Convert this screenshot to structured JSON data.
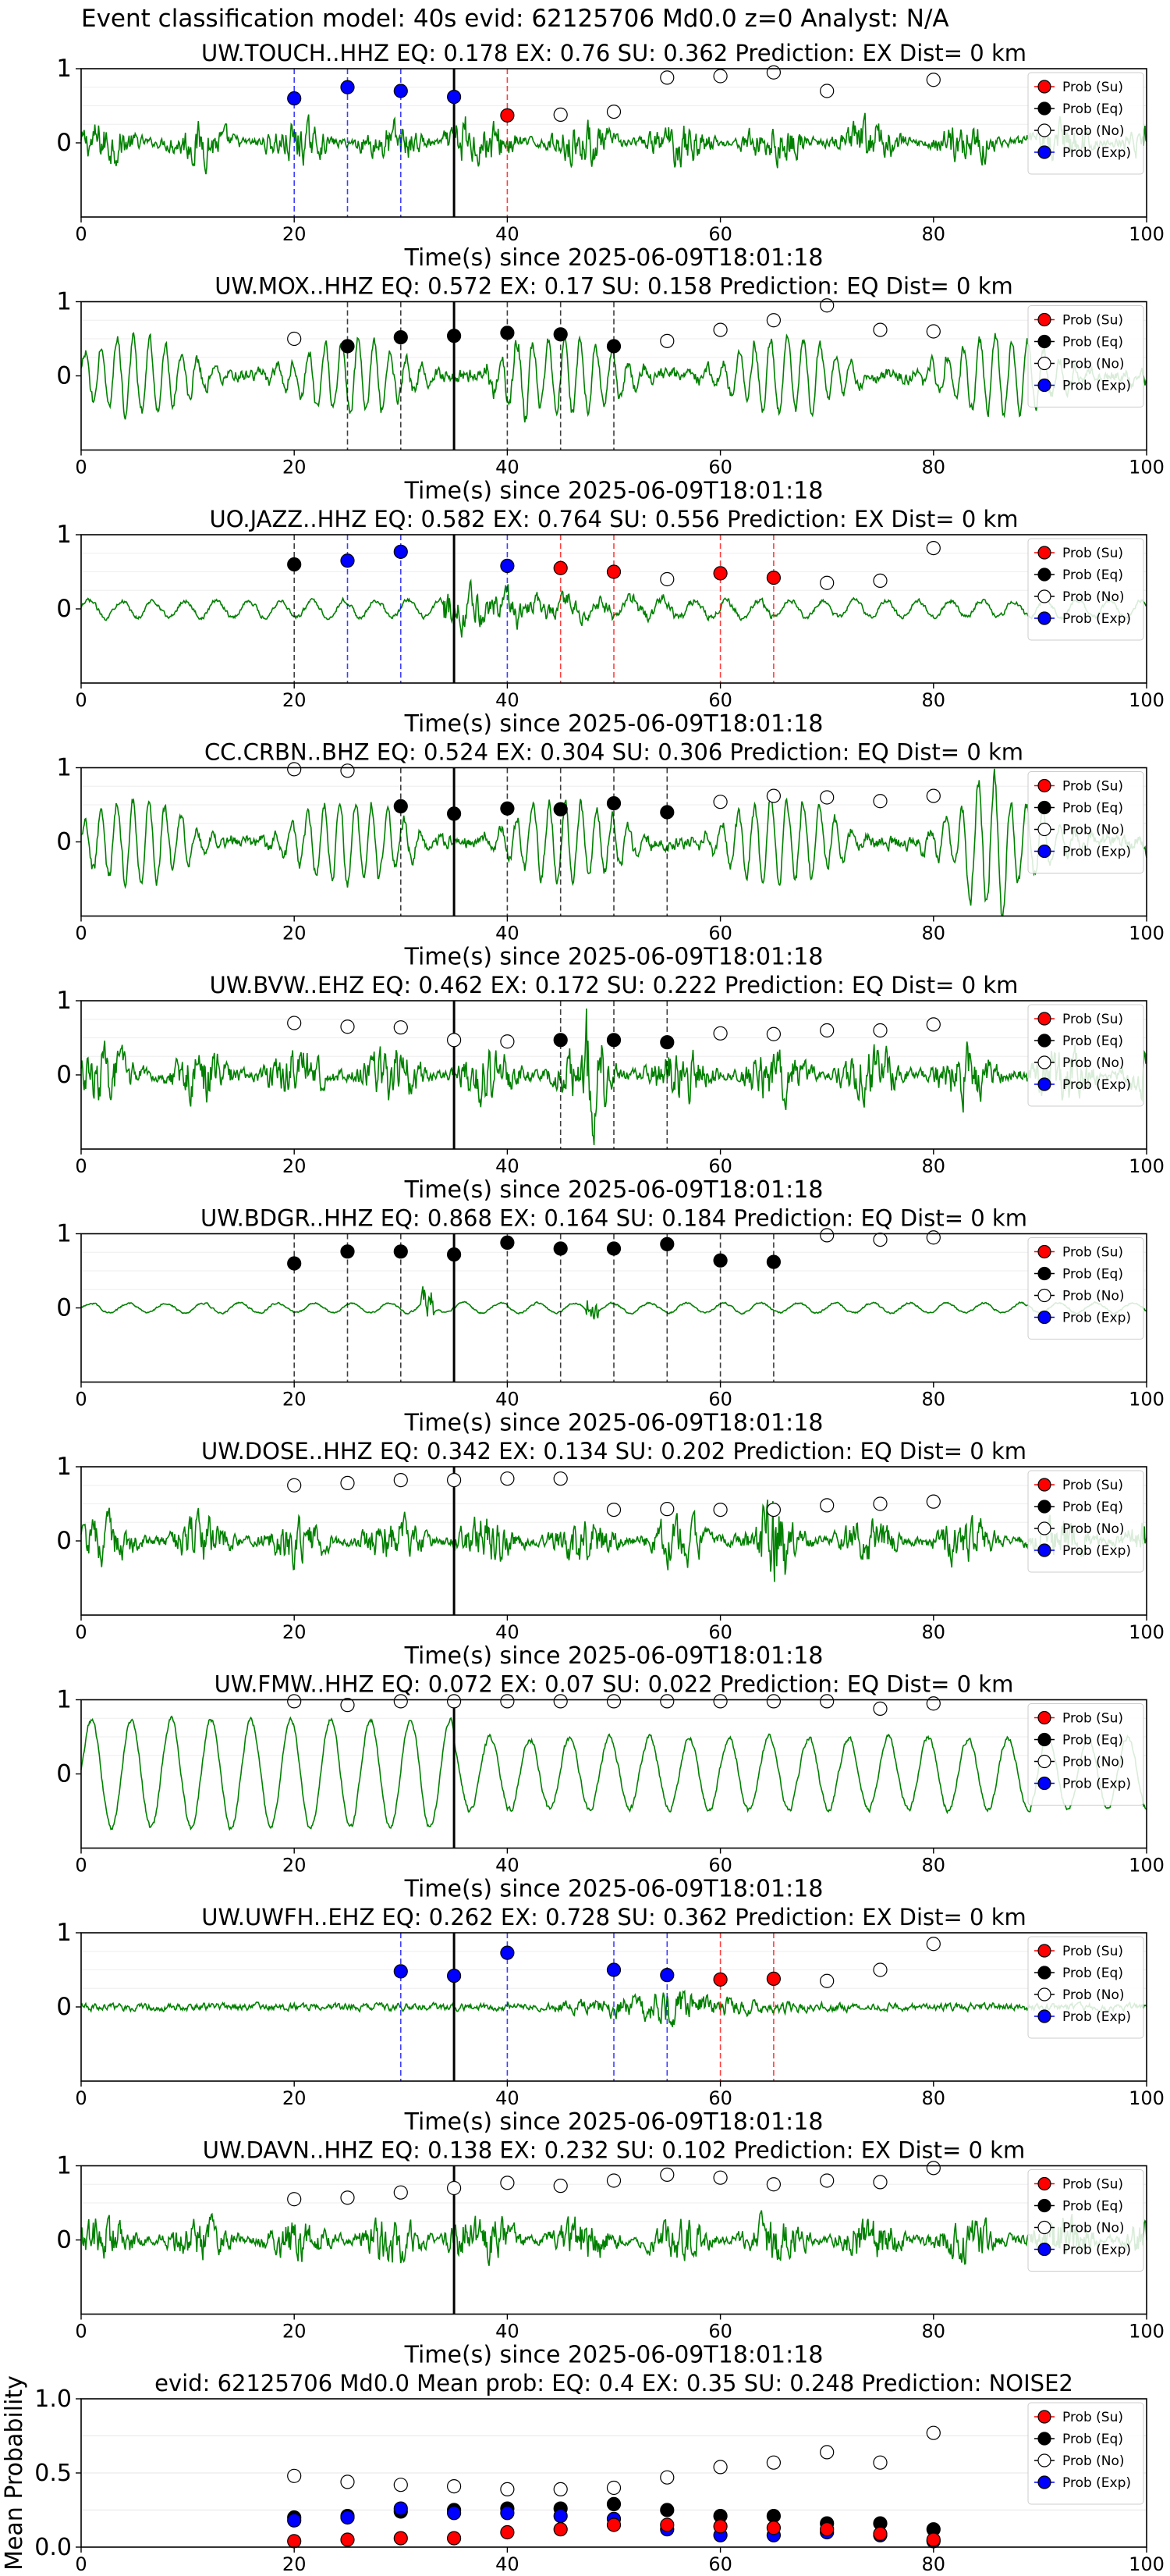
{
  "figure": {
    "suptitle": "Event classification model: 40s evid: 62125706 Md0.0 z=0 Analyst: N/A"
  },
  "colors": {
    "waveform": "#008000",
    "su": "#ff0000",
    "eq": "#000000",
    "no": "#ffffff",
    "exp": "#0000ff",
    "pick": "#000000"
  },
  "legend": {
    "placement": "top-right",
    "entries": [
      "Prob (Su)",
      "Prob (Eq)",
      "Prob (No)",
      "Prob (Exp)"
    ]
  },
  "chart_data": [
    {
      "type": "line",
      "title": "UW.TOUCH..HHZ   EQ: 0.178   EX: 0.76   SU: 0.362   Prediction: EX    Dist= 0 km",
      "xlabel": "Time(s) since 2025-06-09T18:01:18",
      "xlim": [
        0,
        100
      ],
      "ylim": [
        -1,
        1
      ],
      "xticks": [
        0,
        20,
        40,
        60,
        80,
        100
      ],
      "yticks": [
        0,
        1
      ],
      "pick_time": 35,
      "waveform": {
        "color": "green",
        "amp": 0.55,
        "style": "hf",
        "burst_at": 35
      },
      "points": [
        {
          "x": 20,
          "y": 0.6,
          "class": "Exp"
        },
        {
          "x": 25,
          "y": 0.75,
          "class": "Exp"
        },
        {
          "x": 30,
          "y": 0.7,
          "class": "Exp"
        },
        {
          "x": 35,
          "y": 0.62,
          "class": "Exp"
        },
        {
          "x": 40,
          "y": 0.37,
          "class": "Su"
        },
        {
          "x": 45,
          "y": 0.38,
          "class": "No"
        },
        {
          "x": 50,
          "y": 0.42,
          "class": "No"
        },
        {
          "x": 55,
          "y": 0.88,
          "class": "No"
        },
        {
          "x": 60,
          "y": 0.9,
          "class": "No"
        },
        {
          "x": 65,
          "y": 0.95,
          "class": "No"
        },
        {
          "x": 70,
          "y": 0.7,
          "class": "No"
        },
        {
          "x": 80,
          "y": 0.85,
          "class": "No"
        }
      ]
    },
    {
      "type": "line",
      "title": "UW.MOX..HHZ   EQ: 0.572   EX: 0.17   SU: 0.158   Prediction: EQ    Dist= 0 km",
      "xlabel": "Time(s) since 2025-06-09T18:01:18",
      "xlim": [
        0,
        100
      ],
      "ylim": [
        -1,
        1
      ],
      "xticks": [
        0,
        20,
        40,
        60,
        80,
        100
      ],
      "yticks": [
        0,
        1
      ],
      "pick_time": 35,
      "waveform": {
        "color": "green",
        "amp": 0.6,
        "style": "mid",
        "burst_at": 40
      },
      "points": [
        {
          "x": 20,
          "y": 0.5,
          "class": "No"
        },
        {
          "x": 25,
          "y": 0.4,
          "class": "Eq"
        },
        {
          "x": 30,
          "y": 0.52,
          "class": "Eq"
        },
        {
          "x": 35,
          "y": 0.54,
          "class": "Eq"
        },
        {
          "x": 40,
          "y": 0.58,
          "class": "Eq"
        },
        {
          "x": 45,
          "y": 0.56,
          "class": "Eq"
        },
        {
          "x": 50,
          "y": 0.4,
          "class": "Eq"
        },
        {
          "x": 55,
          "y": 0.47,
          "class": "No"
        },
        {
          "x": 60,
          "y": 0.62,
          "class": "No"
        },
        {
          "x": 65,
          "y": 0.75,
          "class": "No"
        },
        {
          "x": 70,
          "y": 0.95,
          "class": "No"
        },
        {
          "x": 75,
          "y": 0.62,
          "class": "No"
        },
        {
          "x": 80,
          "y": 0.6,
          "class": "No"
        }
      ]
    },
    {
      "type": "line",
      "title": "UO.JAZZ..HHZ   EQ: 0.582   EX: 0.764   SU: 0.556   Prediction: EX    Dist= 0 km",
      "xlabel": "Time(s) since 2025-06-09T18:01:18",
      "xlim": [
        0,
        100
      ],
      "ylim": [
        -1,
        1
      ],
      "xticks": [
        0,
        20,
        40,
        60,
        80,
        100
      ],
      "yticks": [
        0,
        1
      ],
      "pick_time": 35,
      "waveform": {
        "color": "green",
        "amp": 0.3,
        "style": "low",
        "burst_at": 40
      },
      "points": [
        {
          "x": 20,
          "y": 0.6,
          "class": "Eq"
        },
        {
          "x": 25,
          "y": 0.65,
          "class": "Exp"
        },
        {
          "x": 30,
          "y": 0.77,
          "class": "Exp"
        },
        {
          "x": 40,
          "y": 0.58,
          "class": "Exp"
        },
        {
          "x": 45,
          "y": 0.55,
          "class": "Su"
        },
        {
          "x": 50,
          "y": 0.5,
          "class": "Su"
        },
        {
          "x": 55,
          "y": 0.4,
          "class": "No"
        },
        {
          "x": 60,
          "y": 0.48,
          "class": "Su"
        },
        {
          "x": 65,
          "y": 0.42,
          "class": "Su"
        },
        {
          "x": 70,
          "y": 0.35,
          "class": "No"
        },
        {
          "x": 75,
          "y": 0.38,
          "class": "No"
        },
        {
          "x": 80,
          "y": 0.82,
          "class": "No"
        }
      ]
    },
    {
      "type": "line",
      "title": "CC.CRBN..BHZ   EQ: 0.524   EX: 0.304   SU: 0.306   Prediction: EQ    Dist= 0 km",
      "xlabel": "Time(s) since 2025-06-09T18:01:18",
      "xlim": [
        0,
        100
      ],
      "ylim": [
        -1,
        1
      ],
      "xticks": [
        0,
        20,
        40,
        60,
        80,
        100
      ],
      "yticks": [
        0,
        1
      ],
      "pick_time": 35,
      "waveform": {
        "color": "green",
        "amp": 0.65,
        "style": "mid",
        "burst_at": 85
      },
      "points": [
        {
          "x": 20,
          "y": 0.98,
          "class": "No"
        },
        {
          "x": 25,
          "y": 0.96,
          "class": "No"
        },
        {
          "x": 30,
          "y": 0.48,
          "class": "Eq"
        },
        {
          "x": 35,
          "y": 0.38,
          "class": "Eq"
        },
        {
          "x": 40,
          "y": 0.45,
          "class": "Eq"
        },
        {
          "x": 45,
          "y": 0.44,
          "class": "Eq"
        },
        {
          "x": 50,
          "y": 0.52,
          "class": "Eq"
        },
        {
          "x": 55,
          "y": 0.4,
          "class": "Eq"
        },
        {
          "x": 60,
          "y": 0.54,
          "class": "No"
        },
        {
          "x": 65,
          "y": 0.62,
          "class": "No"
        },
        {
          "x": 70,
          "y": 0.6,
          "class": "No"
        },
        {
          "x": 75,
          "y": 0.55,
          "class": "No"
        },
        {
          "x": 80,
          "y": 0.62,
          "class": "No"
        }
      ]
    },
    {
      "type": "line",
      "title": "UW.BVW..EHZ   EQ: 0.462   EX: 0.172   SU: 0.222   Prediction: EQ    Dist= 0 km",
      "xlabel": "Time(s) since 2025-06-09T18:01:18",
      "xlim": [
        0,
        100
      ],
      "ylim": [
        -1,
        1
      ],
      "xticks": [
        0,
        20,
        40,
        60,
        80,
        100
      ],
      "yticks": [
        0,
        1
      ],
      "pick_time": 35,
      "waveform": {
        "color": "green",
        "amp": 0.7,
        "style": "hf",
        "burst_at": 48
      },
      "points": [
        {
          "x": 20,
          "y": 0.7,
          "class": "No"
        },
        {
          "x": 25,
          "y": 0.65,
          "class": "No"
        },
        {
          "x": 30,
          "y": 0.64,
          "class": "No"
        },
        {
          "x": 35,
          "y": 0.47,
          "class": "No"
        },
        {
          "x": 40,
          "y": 0.45,
          "class": "No"
        },
        {
          "x": 45,
          "y": 0.47,
          "class": "Eq"
        },
        {
          "x": 50,
          "y": 0.47,
          "class": "Eq"
        },
        {
          "x": 55,
          "y": 0.44,
          "class": "Eq"
        },
        {
          "x": 60,
          "y": 0.56,
          "class": "No"
        },
        {
          "x": 65,
          "y": 0.55,
          "class": "No"
        },
        {
          "x": 70,
          "y": 0.6,
          "class": "No"
        },
        {
          "x": 75,
          "y": 0.6,
          "class": "No"
        },
        {
          "x": 80,
          "y": 0.68,
          "class": "No"
        }
      ]
    },
    {
      "type": "line",
      "title": "UW.BDGR..HHZ   EQ: 0.868   EX: 0.164   SU: 0.184   Prediction: EQ    Dist= 0 km",
      "xlabel": "Time(s) since 2025-06-09T18:01:18",
      "xlim": [
        0,
        100
      ],
      "ylim": [
        -1,
        1
      ],
      "xticks": [
        0,
        20,
        40,
        60,
        80,
        100
      ],
      "yticks": [
        0,
        1
      ],
      "pick_time": 35,
      "waveform": {
        "color": "green",
        "amp": 0.12,
        "style": "quiet",
        "burst_at": 48
      },
      "points": [
        {
          "x": 20,
          "y": 0.6,
          "class": "Eq"
        },
        {
          "x": 25,
          "y": 0.76,
          "class": "Eq"
        },
        {
          "x": 30,
          "y": 0.76,
          "class": "Eq"
        },
        {
          "x": 35,
          "y": 0.72,
          "class": "Eq"
        },
        {
          "x": 40,
          "y": 0.88,
          "class": "Eq"
        },
        {
          "x": 45,
          "y": 0.8,
          "class": "Eq"
        },
        {
          "x": 50,
          "y": 0.8,
          "class": "Eq"
        },
        {
          "x": 55,
          "y": 0.86,
          "class": "Eq"
        },
        {
          "x": 60,
          "y": 0.64,
          "class": "Eq"
        },
        {
          "x": 65,
          "y": 0.62,
          "class": "Eq"
        },
        {
          "x": 70,
          "y": 0.98,
          "class": "No"
        },
        {
          "x": 75,
          "y": 0.92,
          "class": "No"
        },
        {
          "x": 80,
          "y": 0.95,
          "class": "No"
        }
      ]
    },
    {
      "type": "line",
      "title": "UW.DOSE..HHZ   EQ: 0.342   EX: 0.134   SU: 0.202   Prediction: EQ    Dist= 0 km",
      "xlabel": "Time(s) since 2025-06-09T18:01:18",
      "xlim": [
        0,
        100
      ],
      "ylim": [
        -1,
        1
      ],
      "xticks": [
        0,
        20,
        40,
        60,
        80,
        100
      ],
      "yticks": [
        0,
        1
      ],
      "pick_time": 35,
      "waveform": {
        "color": "green",
        "amp": 0.6,
        "style": "hf",
        "burst_at": 65
      },
      "points": [
        {
          "x": 20,
          "y": 0.75,
          "class": "No"
        },
        {
          "x": 25,
          "y": 0.78,
          "class": "No"
        },
        {
          "x": 30,
          "y": 0.82,
          "class": "No"
        },
        {
          "x": 35,
          "y": 0.82,
          "class": "No"
        },
        {
          "x": 40,
          "y": 0.84,
          "class": "No"
        },
        {
          "x": 45,
          "y": 0.84,
          "class": "No"
        },
        {
          "x": 50,
          "y": 0.42,
          "class": "No"
        },
        {
          "x": 55,
          "y": 0.43,
          "class": "No"
        },
        {
          "x": 60,
          "y": 0.42,
          "class": "No"
        },
        {
          "x": 65,
          "y": 0.42,
          "class": "No"
        },
        {
          "x": 70,
          "y": 0.48,
          "class": "No"
        },
        {
          "x": 75,
          "y": 0.5,
          "class": "No"
        },
        {
          "x": 80,
          "y": 0.53,
          "class": "No"
        }
      ]
    },
    {
      "type": "line",
      "title": "UW.FMW..HHZ   EQ: 0.072   EX: 0.07   SU: 0.022   Prediction: EQ    Dist= 0 km",
      "xlabel": "Time(s) since 2025-06-09T18:01:18",
      "xlim": [
        0,
        100
      ],
      "ylim": [
        -1,
        1
      ],
      "xticks": [
        0,
        20,
        40,
        60,
        80,
        100
      ],
      "yticks": [
        0,
        1
      ],
      "pick_time": 35,
      "waveform": {
        "color": "green",
        "amp": 0.6,
        "style": "slow",
        "burst_at": -1
      },
      "points": [
        {
          "x": 20,
          "y": 0.98,
          "class": "No"
        },
        {
          "x": 25,
          "y": 0.93,
          "class": "No"
        },
        {
          "x": 30,
          "y": 0.98,
          "class": "No"
        },
        {
          "x": 35,
          "y": 0.98,
          "class": "No"
        },
        {
          "x": 40,
          "y": 0.98,
          "class": "No"
        },
        {
          "x": 45,
          "y": 0.98,
          "class": "No"
        },
        {
          "x": 50,
          "y": 0.98,
          "class": "No"
        },
        {
          "x": 55,
          "y": 0.98,
          "class": "No"
        },
        {
          "x": 60,
          "y": 0.98,
          "class": "No"
        },
        {
          "x": 65,
          "y": 0.98,
          "class": "No"
        },
        {
          "x": 70,
          "y": 0.98,
          "class": "No"
        },
        {
          "x": 75,
          "y": 0.88,
          "class": "No"
        },
        {
          "x": 80,
          "y": 0.95,
          "class": "No"
        }
      ]
    },
    {
      "type": "line",
      "title": "UW.UWFH..EHZ   EQ: 0.262   EX: 0.728   SU: 0.362   Prediction: EX    Dist= 0 km",
      "xlabel": "Time(s) since 2025-06-09T18:01:18",
      "xlim": [
        0,
        100
      ],
      "ylim": [
        -1,
        1
      ],
      "xticks": [
        0,
        20,
        40,
        60,
        80,
        100
      ],
      "yticks": [
        0,
        1
      ],
      "pick_time": 35,
      "waveform": {
        "color": "green",
        "amp": 0.15,
        "style": "event",
        "burst_at": 50
      },
      "points": [
        {
          "x": 30,
          "y": 0.48,
          "class": "Exp"
        },
        {
          "x": 35,
          "y": 0.42,
          "class": "Exp"
        },
        {
          "x": 40,
          "y": 0.73,
          "class": "Exp"
        },
        {
          "x": 50,
          "y": 0.5,
          "class": "Exp"
        },
        {
          "x": 55,
          "y": 0.43,
          "class": "Exp"
        },
        {
          "x": 60,
          "y": 0.37,
          "class": "Su"
        },
        {
          "x": 65,
          "y": 0.38,
          "class": "Su"
        },
        {
          "x": 70,
          "y": 0.35,
          "class": "No"
        },
        {
          "x": 75,
          "y": 0.5,
          "class": "No"
        },
        {
          "x": 80,
          "y": 0.85,
          "class": "No"
        }
      ]
    },
    {
      "type": "line",
      "title": "UW.DAVN..HHZ   EQ: 0.138   EX: 0.232   SU: 0.102   Prediction: EX    Dist= 0 km",
      "xlabel": "Time(s) since 2025-06-09T18:01:18",
      "xlim": [
        0,
        100
      ],
      "ylim": [
        -1,
        1
      ],
      "xticks": [
        0,
        20,
        40,
        60,
        80,
        100
      ],
      "yticks": [
        0,
        1
      ],
      "pick_time": 35,
      "waveform": {
        "color": "green",
        "amp": 0.6,
        "style": "hf",
        "burst_at": 35
      },
      "points": [
        {
          "x": 20,
          "y": 0.55,
          "class": "No"
        },
        {
          "x": 25,
          "y": 0.57,
          "class": "No"
        },
        {
          "x": 30,
          "y": 0.64,
          "class": "No"
        },
        {
          "x": 35,
          "y": 0.7,
          "class": "No"
        },
        {
          "x": 40,
          "y": 0.77,
          "class": "No"
        },
        {
          "x": 45,
          "y": 0.73,
          "class": "No"
        },
        {
          "x": 50,
          "y": 0.8,
          "class": "No"
        },
        {
          "x": 55,
          "y": 0.88,
          "class": "No"
        },
        {
          "x": 60,
          "y": 0.84,
          "class": "No"
        },
        {
          "x": 65,
          "y": 0.75,
          "class": "No"
        },
        {
          "x": 70,
          "y": 0.8,
          "class": "No"
        },
        {
          "x": 75,
          "y": 0.78,
          "class": "No"
        },
        {
          "x": 80,
          "y": 0.97,
          "class": "No"
        }
      ]
    },
    {
      "type": "scatter",
      "title": "evid: 62125706  Md0.0   Mean prob:   EQ: 0.4  EX: 0.35  SU: 0.248   Prediction: NOISE2",
      "ylabel": "Mean Probability",
      "xlim": [
        0,
        100
      ],
      "ylim": [
        0,
        1
      ],
      "xticks": [
        0,
        20,
        40,
        60,
        80,
        100
      ],
      "yticks": [
        0.0,
        0.5,
        1.0
      ],
      "ytick_labels": [
        "0.0",
        "0.5",
        "1.0"
      ],
      "grid": true,
      "series": [
        {
          "class": "No",
          "x": [
            20,
            25,
            30,
            35,
            40,
            45,
            50,
            55,
            60,
            65,
            70,
            75,
            80
          ],
          "y": [
            0.48,
            0.44,
            0.42,
            0.41,
            0.39,
            0.39,
            0.4,
            0.47,
            0.54,
            0.57,
            0.64,
            0.57,
            0.77
          ]
        },
        {
          "class": "Eq",
          "x": [
            20,
            25,
            30,
            35,
            40,
            45,
            50,
            55,
            60,
            65,
            70,
            75,
            80
          ],
          "y": [
            0.2,
            0.21,
            0.24,
            0.25,
            0.26,
            0.26,
            0.29,
            0.25,
            0.21,
            0.21,
            0.16,
            0.16,
            0.12
          ]
        },
        {
          "class": "Exp",
          "x": [
            20,
            25,
            30,
            35,
            40,
            45,
            50,
            55,
            60,
            65,
            70,
            75,
            80
          ],
          "y": [
            0.18,
            0.2,
            0.26,
            0.23,
            0.23,
            0.21,
            0.19,
            0.12,
            0.08,
            0.08,
            0.1,
            0.08,
            0.04
          ]
        },
        {
          "class": "Su",
          "x": [
            20,
            25,
            30,
            35,
            40,
            45,
            50,
            55,
            60,
            65,
            70,
            75,
            80
          ],
          "y": [
            0.04,
            0.05,
            0.06,
            0.06,
            0.1,
            0.12,
            0.15,
            0.15,
            0.14,
            0.13,
            0.12,
            0.09,
            0.05
          ]
        }
      ]
    }
  ]
}
